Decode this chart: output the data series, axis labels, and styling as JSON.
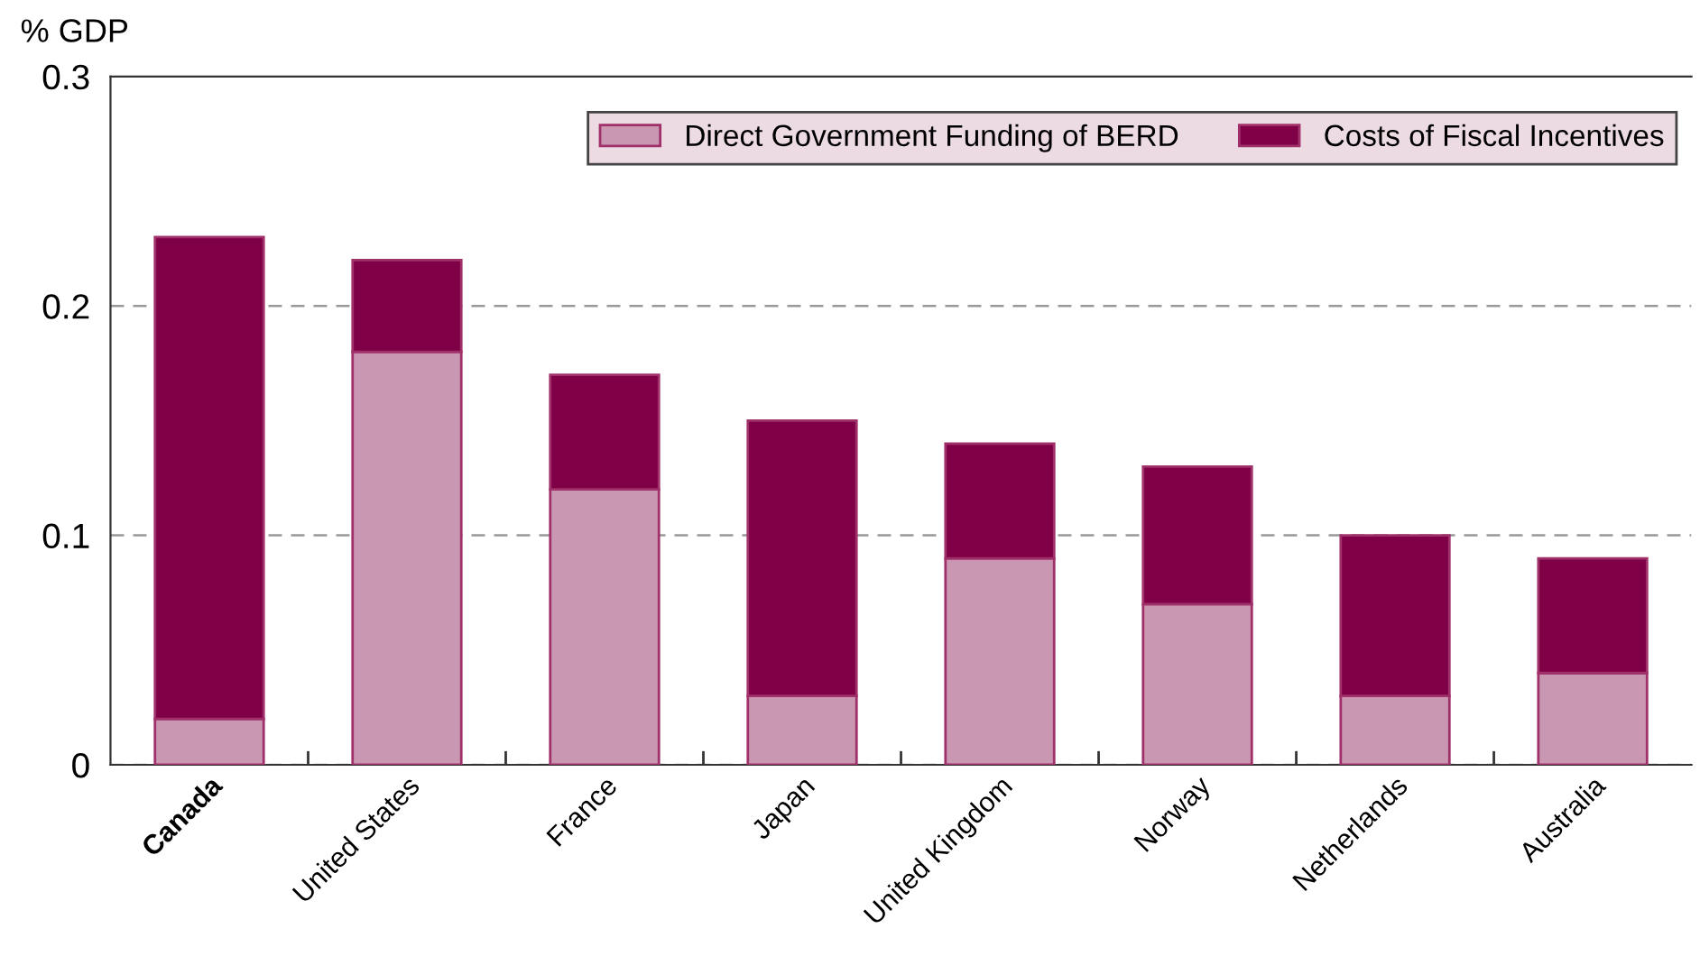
{
  "chart_data": {
    "type": "bar",
    "stacked": true,
    "ylabel": "% GDP",
    "categories": [
      "Canada",
      "United States",
      "France",
      "Japan",
      "United Kingdom",
      "Norway",
      "Netherlands",
      "Australia"
    ],
    "series": [
      {
        "name": "Direct Government Funding of BERD",
        "color": "#c997b1",
        "values": [
          0.02,
          0.18,
          0.12,
          0.03,
          0.09,
          0.07,
          0.03,
          0.04
        ]
      },
      {
        "name": "Costs of Fiscal Incentives",
        "color": "#7f0046",
        "values": [
          0.21,
          0.04,
          0.05,
          0.12,
          0.05,
          0.06,
          0.07,
          0.05
        ]
      }
    ],
    "ylim": [
      0,
      0.3
    ],
    "yticks": [
      0,
      0.1,
      0.2,
      0.3
    ],
    "grid": "y",
    "legend": "top right"
  }
}
